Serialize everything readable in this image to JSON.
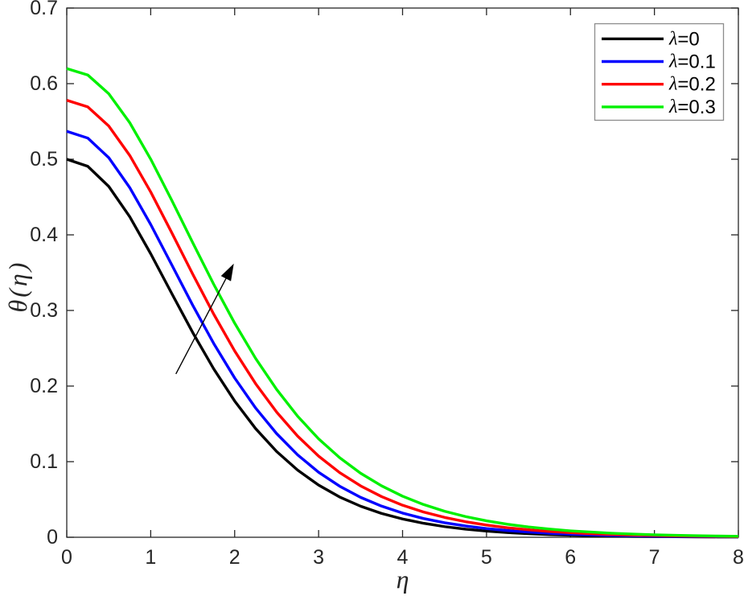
{
  "figure": {
    "background": "#ffffff",
    "axis_color": "#262626",
    "plot_background": "#ffffff"
  },
  "chart_data": {
    "type": "line",
    "title": "",
    "xlabel": "η",
    "ylabel": "θ(η)",
    "xlim": [
      0,
      8
    ],
    "ylim": [
      0,
      0.7
    ],
    "grid": false,
    "box": true,
    "tick_direction": "in",
    "xticks": [
      "0",
      "1",
      "2",
      "3",
      "4",
      "5",
      "6",
      "7",
      "8"
    ],
    "yticks": [
      "0",
      "0.1",
      "0.2",
      "0.3",
      "0.4",
      "0.5",
      "0.6",
      "0.7"
    ],
    "x": [
      0,
      0.25,
      0.5,
      0.75,
      1,
      1.25,
      1.5,
      1.75,
      2,
      2.25,
      2.5,
      2.75,
      3,
      3.25,
      3.5,
      3.75,
      4,
      4.25,
      4.5,
      4.75,
      5,
      5.25,
      5.5,
      5.75,
      6,
      6.25,
      6.5,
      6.75,
      7,
      7.25,
      7.5,
      7.75,
      8
    ],
    "series": [
      {
        "name": "λ=0",
        "color": "#000000",
        "theta_at_0": 0.5,
        "values": [
          0.5,
          0.4907,
          0.4641,
          0.424,
          0.375,
          0.3226,
          0.2709,
          0.2228,
          0.1802,
          0.1437,
          0.1134,
          0.0888,
          0.069,
          0.0533,
          0.0411,
          0.0315,
          0.0242,
          0.0185,
          0.0141,
          0.0107,
          0.0082,
          0.0062,
          0.0047,
          0.0036,
          0.0027,
          0.0021,
          0.0016,
          0.0012,
          0.0009,
          0.0007,
          0.0005,
          0.0004,
          0.0003
        ]
      },
      {
        "name": "λ=0.1",
        "color": "#0000ff",
        "theta_at_0": 0.537,
        "values": [
          0.537,
          0.528,
          0.5021,
          0.4625,
          0.4137,
          0.3605,
          0.307,
          0.2564,
          0.2107,
          0.1709,
          0.1371,
          0.109,
          0.086,
          0.0676,
          0.0528,
          0.0412,
          0.032,
          0.0248,
          0.0192,
          0.0149,
          0.0115,
          0.0089,
          0.0068,
          0.0053,
          0.0041,
          0.0031,
          0.0024,
          0.0019,
          0.0014,
          0.0011,
          0.0009,
          0.0007,
          0.0005
        ]
      },
      {
        "name": "λ=0.2",
        "color": "#ff0000",
        "theta_at_0": 0.578,
        "values": [
          0.578,
          0.5693,
          0.544,
          0.5051,
          0.4567,
          0.403,
          0.3481,
          0.2952,
          0.2465,
          0.2031,
          0.1656,
          0.1338,
          0.1073,
          0.0856,
          0.068,
          0.0538,
          0.0424,
          0.0334,
          0.0263,
          0.0206,
          0.0162,
          0.0126,
          0.0099,
          0.0077,
          0.0061,
          0.0047,
          0.0037,
          0.0029,
          0.0023,
          0.0018,
          0.0014,
          0.0011,
          0.0008
        ]
      },
      {
        "name": "λ=0.3",
        "color": "#00f000",
        "theta_at_0": 0.62,
        "values": [
          0.62,
          0.6115,
          0.5867,
          0.5484,
          0.5001,
          0.4459,
          0.3897,
          0.3347,
          0.2832,
          0.2365,
          0.1955,
          0.1601,
          0.1302,
          0.1053,
          0.0847,
          0.068,
          0.0543,
          0.0433,
          0.0344,
          0.0274,
          0.0217,
          0.0172,
          0.0136,
          0.0108,
          0.0085,
          0.0068,
          0.0053,
          0.0042,
          0.0033,
          0.0026,
          0.0021,
          0.0016,
          0.0013
        ]
      }
    ],
    "legend": {
      "position": "top-right",
      "border_color": "#8c8c8c",
      "background": "#ffffff",
      "entries": [
        {
          "symbol": "λ",
          "suffix": "=0"
        },
        {
          "symbol": "λ",
          "suffix": "=0.1"
        },
        {
          "symbol": "λ",
          "suffix": "=0.2"
        },
        {
          "symbol": "λ",
          "suffix": "=0.3"
        }
      ]
    },
    "annotation": {
      "type": "arrow",
      "color": "#000000",
      "from": {
        "x": 1.3,
        "y": 0.216
      },
      "to": {
        "x": 1.99,
        "y": 0.362
      }
    }
  }
}
